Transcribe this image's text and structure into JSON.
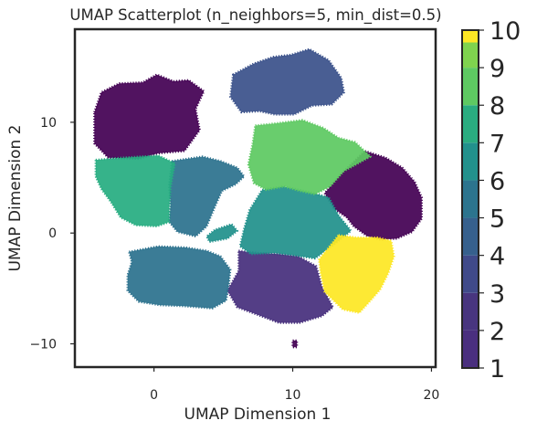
{
  "chart_data": {
    "type": "scatter",
    "title": "UMAP Scatterplot (n_neighbors=5, min_dist=0.5)",
    "xlabel": "UMAP Dimension 1",
    "ylabel": "UMAP Dimension 2",
    "xlim": [
      -5.7,
      20.3
    ],
    "ylim": [
      -12.1,
      18.4
    ],
    "xticks": [
      0,
      10,
      20
    ],
    "yticks": [
      -10,
      0,
      10
    ],
    "grid": false,
    "colormap": "viridis",
    "colorbar": {
      "ticks": [
        1,
        2,
        3,
        4,
        5,
        6,
        7,
        8,
        9,
        10
      ],
      "range": [
        1,
        10
      ]
    },
    "clusters": [
      {
        "label": 1,
        "color": "#440154",
        "polygon": [
          [
            -4.3,
            10.9
          ],
          [
            -3.8,
            12.7
          ],
          [
            -2.5,
            13.5
          ],
          [
            -0.8,
            13.6
          ],
          [
            0.2,
            14.3
          ],
          [
            1.4,
            13.7
          ],
          [
            2.5,
            13.8
          ],
          [
            3.6,
            12.8
          ],
          [
            3.0,
            11.2
          ],
          [
            3.3,
            9.3
          ],
          [
            2.2,
            7.4
          ],
          [
            0.3,
            7.2
          ],
          [
            -1.1,
            6.7
          ],
          [
            -3.3,
            6.8
          ],
          [
            -4.3,
            8.1
          ]
        ]
      },
      {
        "label": 1,
        "color": "#440154",
        "polygon": [
          [
            15.2,
            7.4
          ],
          [
            16.7,
            6.8
          ],
          [
            17.9,
            5.9
          ],
          [
            18.8,
            4.6
          ],
          [
            19.3,
            3.2
          ],
          [
            19.3,
            1.3
          ],
          [
            18.6,
            0.1
          ],
          [
            17.5,
            -0.5
          ],
          [
            16.4,
            -0.6
          ],
          [
            15.4,
            -0.3
          ],
          [
            14.4,
            0.6
          ],
          [
            13.9,
            1.4
          ],
          [
            13.0,
            2.2
          ],
          [
            12.3,
            3.6
          ],
          [
            13.4,
            5.2
          ]
        ]
      },
      {
        "label": 1,
        "color": "#440154",
        "polygon": [
          [
            10.0,
            -9.7
          ],
          [
            10.3,
            -9.7
          ],
          [
            10.3,
            -10.3
          ],
          [
            10.0,
            -10.3
          ]
        ]
      },
      {
        "label": 3,
        "color": "#472f7d",
        "polygon": [
          [
            6.1,
            -1.6
          ],
          [
            7.5,
            -1.8
          ],
          [
            9.0,
            -1.9
          ],
          [
            10.4,
            -2.1
          ],
          [
            11.7,
            -3.0
          ],
          [
            12.1,
            -4.8
          ],
          [
            12.9,
            -6.7
          ],
          [
            12.1,
            -7.5
          ],
          [
            10.5,
            -8.1
          ],
          [
            9.0,
            -8.1
          ],
          [
            7.3,
            -7.3
          ],
          [
            6.0,
            -6.7
          ],
          [
            5.3,
            -5.2
          ],
          [
            6.1,
            -3.4
          ]
        ]
      },
      {
        "label": 4,
        "color": "#3b528b",
        "polygon": [
          [
            5.7,
            14.3
          ],
          [
            7.2,
            15.3
          ],
          [
            8.6,
            15.9
          ],
          [
            9.9,
            16.1
          ],
          [
            11.2,
            16.6
          ],
          [
            12.6,
            15.6
          ],
          [
            13.5,
            14.0
          ],
          [
            13.7,
            12.7
          ],
          [
            12.8,
            11.6
          ],
          [
            11.4,
            11.5
          ],
          [
            10.1,
            10.7
          ],
          [
            8.7,
            10.7
          ],
          [
            7.6,
            11.0
          ],
          [
            6.3,
            10.9
          ],
          [
            5.5,
            12.3
          ]
        ]
      },
      {
        "label": 5,
        "color": "#2c728e",
        "polygon": [
          [
            -1.8,
            -1.7
          ],
          [
            0.3,
            -1.2
          ],
          [
            2.3,
            -1.3
          ],
          [
            3.8,
            -1.6
          ],
          [
            4.8,
            -2.1
          ],
          [
            5.5,
            -3.3
          ],
          [
            5.4,
            -4.6
          ],
          [
            5.2,
            -6.1
          ],
          [
            4.2,
            -6.8
          ],
          [
            2.2,
            -6.6
          ],
          [
            0.4,
            -6.5
          ],
          [
            -1.1,
            -6.2
          ],
          [
            -1.9,
            -5.2
          ],
          [
            -1.9,
            -3.8
          ],
          [
            -1.6,
            -2.6
          ]
        ]
      },
      {
        "label": 5,
        "color": "#2c728e",
        "polygon": [
          [
            1.3,
            6.5
          ],
          [
            3.5,
            6.9
          ],
          [
            4.8,
            6.5
          ],
          [
            6.0,
            5.9
          ],
          [
            6.5,
            5.1
          ],
          [
            5.9,
            4.4
          ],
          [
            4.9,
            3.8
          ],
          [
            4.4,
            2.4
          ],
          [
            3.8,
            0.6
          ],
          [
            3.0,
            -0.3
          ],
          [
            1.7,
            0.1
          ],
          [
            1.1,
            1.0
          ],
          [
            1.2,
            2.5
          ],
          [
            1.1,
            4.3
          ]
        ]
      },
      {
        "label": 6,
        "color": "#21918c",
        "polygon": [
          [
            7.8,
            3.9
          ],
          [
            9.3,
            4.2
          ],
          [
            10.8,
            3.8
          ],
          [
            11.8,
            3.5
          ],
          [
            12.6,
            3.2
          ],
          [
            13.3,
            1.6
          ],
          [
            14.2,
            0.2
          ],
          [
            12.9,
            -1.1
          ],
          [
            11.6,
            -2.3
          ],
          [
            10.0,
            -2.0
          ],
          [
            8.7,
            -1.8
          ],
          [
            7.0,
            -1.9
          ],
          [
            6.2,
            -1.2
          ],
          [
            6.5,
            0.4
          ],
          [
            6.9,
            2.1
          ]
        ]
      },
      {
        "label": 6,
        "color": "#21918c",
        "polygon": [
          [
            4.0,
            -0.8
          ],
          [
            5.3,
            -0.5
          ],
          [
            6.0,
            0.2
          ],
          [
            5.6,
            0.8
          ],
          [
            4.4,
            0.3
          ],
          [
            3.8,
            -0.3
          ]
        ]
      },
      {
        "label": 7,
        "color": "#27ad81",
        "polygon": [
          [
            -4.2,
            6.6
          ],
          [
            -2.2,
            6.8
          ],
          [
            0.3,
            7.0
          ],
          [
            1.5,
            6.3
          ],
          [
            1.2,
            4.1
          ],
          [
            1.1,
            2.4
          ],
          [
            1.1,
            1.0
          ],
          [
            0.2,
            0.6
          ],
          [
            -1.3,
            0.7
          ],
          [
            -2.4,
            1.4
          ],
          [
            -3.1,
            2.8
          ],
          [
            -3.8,
            4.0
          ],
          [
            -4.2,
            5.1
          ]
        ]
      },
      {
        "label": 8,
        "color": "#5ec962",
        "polygon": [
          [
            7.3,
            9.7
          ],
          [
            8.8,
            9.9
          ],
          [
            10.7,
            10.2
          ],
          [
            12.2,
            9.5
          ],
          [
            13.3,
            8.6
          ],
          [
            14.5,
            8.2
          ],
          [
            15.6,
            6.9
          ],
          [
            13.7,
            5.6
          ],
          [
            12.7,
            4.2
          ],
          [
            11.6,
            3.5
          ],
          [
            10.5,
            3.8
          ],
          [
            9.4,
            4.2
          ],
          [
            8.1,
            3.9
          ],
          [
            7.2,
            4.5
          ],
          [
            6.8,
            6.2
          ],
          [
            7.1,
            8.0
          ]
        ]
      },
      {
        "label": 10,
        "color": "#fde725",
        "polygon": [
          [
            13.3,
            -0.2
          ],
          [
            14.6,
            -0.4
          ],
          [
            16.1,
            -0.4
          ],
          [
            17.1,
            -0.7
          ],
          [
            17.3,
            -2.1
          ],
          [
            16.9,
            -3.6
          ],
          [
            16.3,
            -5.1
          ],
          [
            15.6,
            -6.1
          ],
          [
            14.8,
            -7.2
          ],
          [
            13.6,
            -6.9
          ],
          [
            12.3,
            -5.3
          ],
          [
            12.0,
            -3.5
          ],
          [
            11.9,
            -2.4
          ]
        ]
      }
    ]
  }
}
